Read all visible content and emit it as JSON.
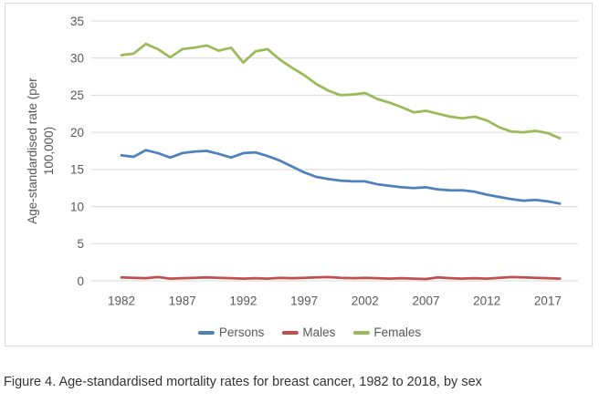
{
  "figure": {
    "caption": "Figure 4. Age-standardised mortality rates for breast cancer, 1982 to 2018, by sex"
  },
  "colors": {
    "grid": "#d9d9d9",
    "frame_border": "#d9d9d9",
    "axis_text": "#595959",
    "caption_text": "#333333",
    "persons_line": "#4F81BD",
    "males_line": "#C0504D",
    "females_line": "#9BBB59"
  },
  "chart_data": {
    "type": "line",
    "title": "",
    "xlabel": "",
    "ylabel": "Age-standardised rate (per 100,000)",
    "ylabel_lines": [
      "Age-standardised rate (per",
      "100,000)"
    ],
    "ylim": [
      0,
      35
    ],
    "y_ticks": [
      0,
      5,
      10,
      15,
      20,
      25,
      30,
      35
    ],
    "x_ticks": [
      1982,
      1987,
      1992,
      1997,
      2002,
      2007,
      2012,
      2017
    ],
    "grid": true,
    "legend_position": "bottom",
    "x": [
      1982,
      1983,
      1984,
      1985,
      1986,
      1987,
      1988,
      1989,
      1990,
      1991,
      1992,
      1993,
      1994,
      1995,
      1996,
      1997,
      1998,
      1999,
      2000,
      2001,
      2002,
      2003,
      2004,
      2005,
      2006,
      2007,
      2008,
      2009,
      2010,
      2011,
      2012,
      2013,
      2014,
      2015,
      2016,
      2017,
      2018
    ],
    "series": [
      {
        "name": "Persons",
        "color": "#4F81BD",
        "values": [
          16.9,
          16.7,
          17.6,
          17.2,
          16.6,
          17.2,
          17.4,
          17.5,
          17.1,
          16.6,
          17.2,
          17.3,
          16.8,
          16.2,
          15.4,
          14.6,
          14.0,
          13.7,
          13.5,
          13.4,
          13.4,
          13.0,
          12.8,
          12.6,
          12.5,
          12.6,
          12.3,
          12.2,
          12.2,
          12.0,
          11.6,
          11.3,
          11.0,
          10.8,
          10.9,
          10.7,
          10.4
        ]
      },
      {
        "name": "Males",
        "color": "#C0504D",
        "values": [
          0.45,
          0.4,
          0.35,
          0.5,
          0.3,
          0.35,
          0.4,
          0.45,
          0.4,
          0.35,
          0.3,
          0.35,
          0.3,
          0.4,
          0.35,
          0.4,
          0.45,
          0.5,
          0.4,
          0.35,
          0.4,
          0.35,
          0.3,
          0.35,
          0.3,
          0.25,
          0.45,
          0.35,
          0.3,
          0.35,
          0.3,
          0.4,
          0.5,
          0.45,
          0.4,
          0.35,
          0.3
        ]
      },
      {
        "name": "Females",
        "color": "#9BBB59",
        "values": [
          30.4,
          30.6,
          31.9,
          31.2,
          30.1,
          31.2,
          31.4,
          31.7,
          31.0,
          31.4,
          29.4,
          30.9,
          31.2,
          29.8,
          28.7,
          27.7,
          26.5,
          25.6,
          25.0,
          25.1,
          25.3,
          24.5,
          24.0,
          23.4,
          22.7,
          22.9,
          22.5,
          22.1,
          21.9,
          22.1,
          21.6,
          20.7,
          20.1,
          20.0,
          20.2,
          19.9,
          19.2
        ]
      }
    ]
  }
}
